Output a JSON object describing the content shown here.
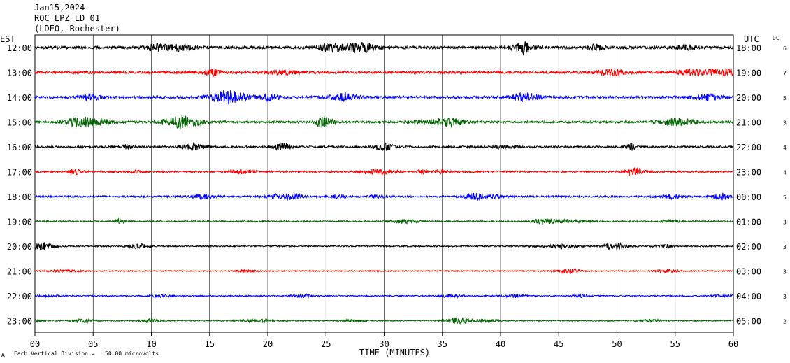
{
  "header": {
    "date": "Jan15,2024",
    "station": "ROC LPZ LD 01",
    "network": "(LDEO, Rochester)"
  },
  "labels": {
    "left_zone": "EST",
    "right_zone": "UTC",
    "dc_header": "DC",
    "footer_mark": "A",
    "footer_scale": "Each Vertical Division =   50.00 microvolts"
  },
  "chart_data": {
    "type": "line",
    "xlabel": "TIME (MINUTES)",
    "xlim": [
      0,
      60
    ],
    "x_ticks": [
      "00",
      "05",
      "10",
      "15",
      "20",
      "25",
      "30",
      "35",
      "40",
      "45",
      "50",
      "55",
      "60"
    ],
    "series": [
      {
        "est": "12:00",
        "utc": "18:00",
        "dc": "6",
        "color": "#000000",
        "amplitude": 8
      },
      {
        "est": "13:00",
        "utc": "19:00",
        "dc": "7",
        "color": "#ff0000",
        "amplitude": 7
      },
      {
        "est": "14:00",
        "utc": "20:00",
        "dc": "5",
        "color": "#0000ff",
        "amplitude": 7
      },
      {
        "est": "15:00",
        "utc": "21:00",
        "dc": "3",
        "color": "#006400",
        "amplitude": 6
      },
      {
        "est": "16:00",
        "utc": "22:00",
        "dc": "4",
        "color": "#000000",
        "amplitude": 6
      },
      {
        "est": "17:00",
        "utc": "23:00",
        "dc": "4",
        "color": "#ff0000",
        "amplitude": 5
      },
      {
        "est": "18:00",
        "utc": "00:00",
        "dc": "5",
        "color": "#0000ff",
        "amplitude": 5
      },
      {
        "est": "19:00",
        "utc": "01:00",
        "dc": "3",
        "color": "#006400",
        "amplitude": 4
      },
      {
        "est": "20:00",
        "utc": "02:00",
        "dc": "3",
        "color": "#000000",
        "amplitude": 4
      },
      {
        "est": "21:00",
        "utc": "03:00",
        "dc": "3",
        "color": "#ff0000",
        "amplitude": 3
      },
      {
        "est": "22:00",
        "utc": "04:00",
        "dc": "3",
        "color": "#0000ff",
        "amplitude": 3
      },
      {
        "est": "23:00",
        "utc": "05:00",
        "dc": "2",
        "color": "#006400",
        "amplitude": 3
      }
    ]
  }
}
